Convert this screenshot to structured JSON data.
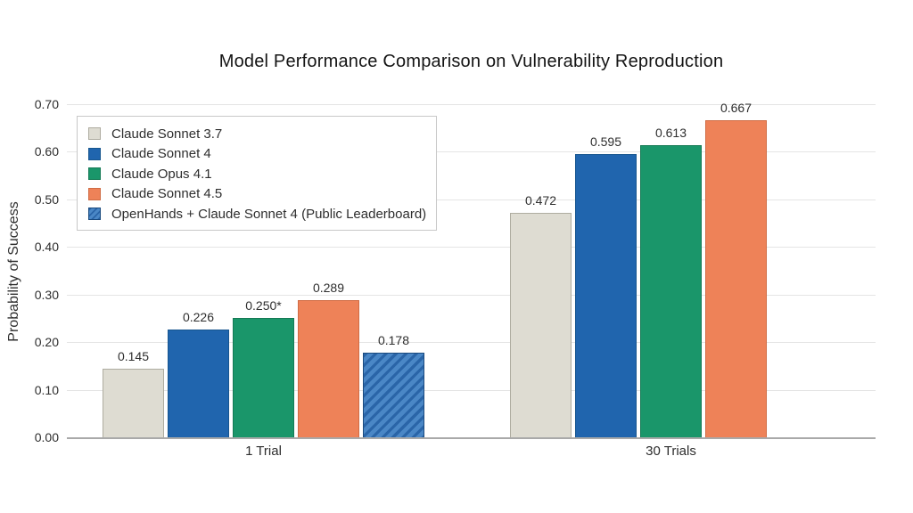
{
  "chart_data": {
    "type": "bar",
    "title": "Model Performance Comparison on Vulnerability Reproduction",
    "xlabel": "",
    "ylabel": "Probability of Success",
    "categories": [
      "1 Trial",
      "30 Trials"
    ],
    "ylim": [
      0,
      0.7
    ],
    "ytick_labels": [
      "0.00",
      "0.10",
      "0.20",
      "0.30",
      "0.40",
      "0.50",
      "0.60",
      "0.70"
    ],
    "grid": true,
    "legend_position": "upper-left",
    "series": [
      {
        "name": "Claude Sonnet 3.7",
        "color": "#dedcd2",
        "edge_color": "#aeaca0",
        "hatch": false,
        "values": [
          0.145,
          0.472
        ],
        "value_labels": [
          "0.145",
          "0.472"
        ]
      },
      {
        "name": "Claude Sonnet 4",
        "color": "#2065ae",
        "edge_color": "#17568f",
        "hatch": false,
        "values": [
          0.226,
          0.595
        ],
        "value_labels": [
          "0.226",
          "0.595"
        ]
      },
      {
        "name": "Claude Opus 4.1",
        "color": "#1a966a",
        "edge_color": "#157a55",
        "hatch": false,
        "values": [
          0.25,
          0.613
        ],
        "value_labels": [
          "0.250*",
          "0.613"
        ]
      },
      {
        "name": "Claude Sonnet 4.5",
        "color": "#ee8258",
        "edge_color": "#d06c44",
        "hatch": false,
        "values": [
          0.289,
          0.667
        ],
        "value_labels": [
          "0.289",
          "0.667"
        ]
      },
      {
        "name": "OpenHands + Claude Sonnet 4 (Public Leaderboard)",
        "color": "#4a87c6",
        "stripe_color": "#2a65a8",
        "edge_color": "#1a4a7e",
        "hatch": true,
        "values": [
          0.178,
          null
        ],
        "value_labels": [
          "0.178",
          null
        ]
      }
    ]
  },
  "colors": {
    "grid": "#e4e4e4",
    "axis": "#a9a9a9",
    "text": "#2e2e2e"
  }
}
